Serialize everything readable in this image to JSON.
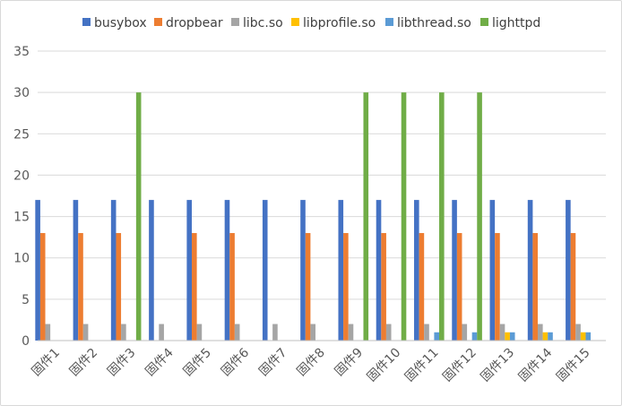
{
  "chart_data": {
    "type": "bar",
    "title": "",
    "xlabel": "",
    "ylabel": "",
    "ylim": [
      0,
      35
    ],
    "yticks": [
      0,
      5,
      10,
      15,
      20,
      25,
      30,
      35
    ],
    "grid": true,
    "legend_position": "top",
    "categories": [
      "固件1",
      "固件2",
      "固件3",
      "固件4",
      "固件5",
      "固件6",
      "固件7",
      "固件8",
      "固件9",
      "固件10",
      "固件11",
      "固件12",
      "固件13",
      "固件14",
      "固件15"
    ],
    "series": [
      {
        "name": "busybox",
        "color": "#4472C4",
        "values": [
          17,
          17,
          17,
          17,
          17,
          17,
          17,
          17,
          17,
          17,
          17,
          17,
          17,
          17,
          17
        ]
      },
      {
        "name": "dropbear",
        "color": "#ED7D31",
        "values": [
          13,
          13,
          13,
          0,
          13,
          13,
          0,
          13,
          13,
          13,
          13,
          13,
          13,
          13,
          13
        ]
      },
      {
        "name": "libc.so",
        "color": "#A5A5A5",
        "values": [
          2,
          2,
          2,
          2,
          2,
          2,
          2,
          2,
          2,
          2,
          2,
          2,
          2,
          2,
          2
        ]
      },
      {
        "name": "libprofile.so",
        "color": "#FFC000",
        "values": [
          0,
          0,
          0,
          0,
          0,
          0,
          0,
          0,
          0,
          0,
          0,
          0,
          1,
          1,
          1
        ]
      },
      {
        "name": "libthread.so",
        "color": "#5B9BD5",
        "values": [
          0,
          0,
          0,
          0,
          0,
          0,
          0,
          0,
          0,
          0,
          1,
          1,
          1,
          1,
          1
        ]
      },
      {
        "name": "lighttpd",
        "color": "#70AD47",
        "values": [
          0,
          0,
          30,
          0,
          0,
          0,
          0,
          0,
          30,
          30,
          30,
          30,
          0,
          0,
          0
        ]
      }
    ]
  }
}
